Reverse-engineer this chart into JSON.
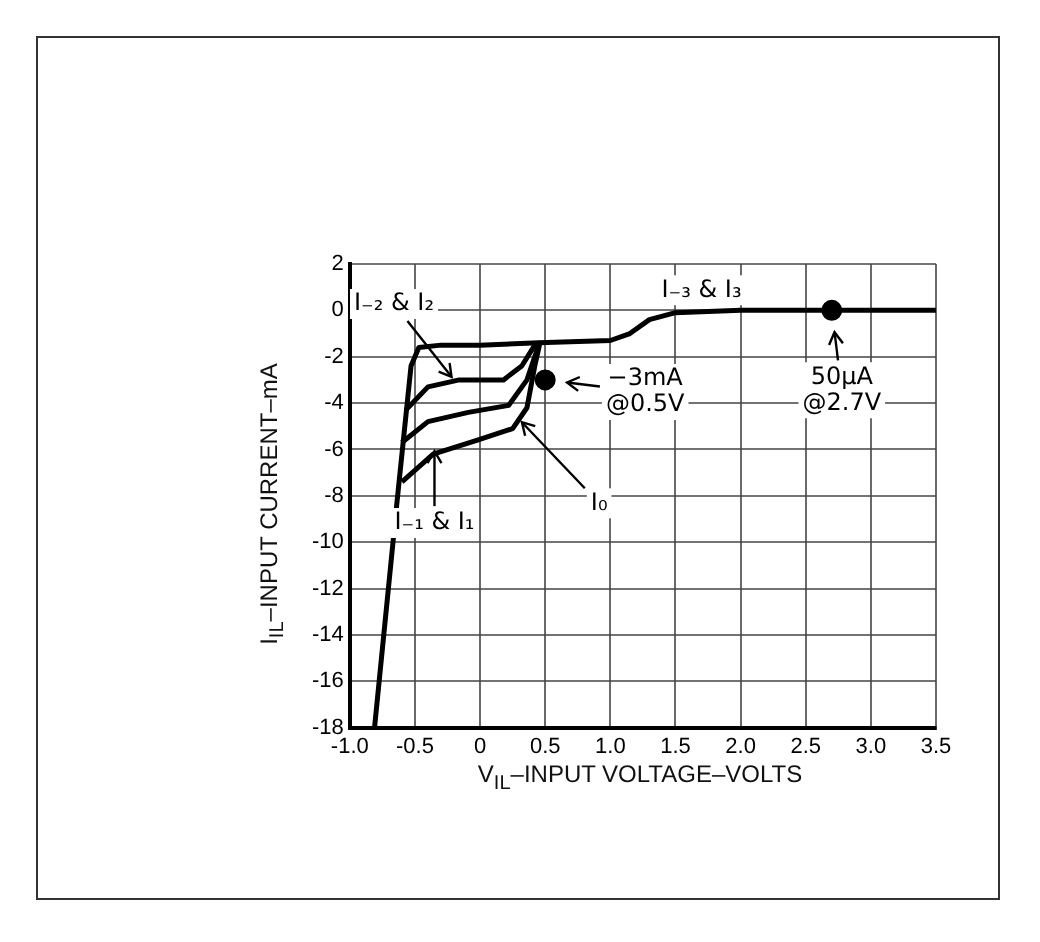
{
  "chart_data": {
    "type": "line",
    "xlabel": "V$_{IL}$–INPUT VOLTAGE–VOLTS",
    "ylabel": "I$_{IL}$–INPUT CURRENT–mA",
    "xlim": [
      -1.0,
      3.5
    ],
    "ylim": [
      -18,
      2
    ],
    "xticks": [
      {
        "value": -1,
        "label": "-1.0"
      },
      -0.5,
      0,
      0.5,
      {
        "value": 1,
        "label": "1.0"
      },
      1.5,
      {
        "value": 2,
        "label": "2.0"
      },
      2.5,
      {
        "value": 3,
        "label": "3.0"
      },
      3.5
    ],
    "yticks": [
      -18,
      -16,
      -14,
      -12,
      -10,
      -8,
      -6,
      -4,
      -2,
      0,
      2
    ],
    "grid": true,
    "legend": false,
    "marker": "none",
    "line_style": "solid",
    "series": [
      {
        "color": "#000000",
        "x": [
          -0.81,
          -0.64,
          -0.53,
          -0.47,
          -0.3,
          0,
          0.45,
          1.0,
          1.15,
          1.3,
          1.5,
          2.0,
          3.5
        ],
        "values": [
          -18,
          -8.4,
          -2.4,
          -1.6,
          -1.5,
          -1.5,
          -1.4,
          -1.3,
          -1.0,
          -0.4,
          -0.1,
          0,
          0
        ]
      },
      {
        "color": "#000000",
        "x": [
          -0.57,
          -0.4,
          -0.16,
          0.18,
          0.32,
          0.42,
          0.46
        ],
        "values": [
          -4.3,
          -3.3,
          -3.0,
          -3.0,
          -2.4,
          -1.5,
          -1.4
        ]
      },
      {
        "color": "#000000",
        "x": [
          -0.6,
          -0.4,
          -0.09,
          0.22,
          0.36,
          0.45
        ],
        "values": [
          -5.7,
          -4.8,
          -4.4,
          -4.1,
          -3.0,
          -1.5
        ]
      },
      {
        "color": "#000000",
        "x": [
          -0.6,
          -0.36,
          -0.02,
          0.25,
          0.36,
          0.42,
          0.46
        ],
        "values": [
          -7.4,
          -6.2,
          -5.6,
          -5.1,
          -4.2,
          -2.4,
          -1.4
        ]
      },
      {
        "type": "scatter",
        "marker": "circle",
        "color": "#000000",
        "x": [
          0.5,
          2.7
        ],
        "values": [
          -3,
          0
        ]
      }
    ],
    "annotations": [
      {
        "text": "I₋₂ & I₂",
        "x": -0.2,
        "y": -3.0
      },
      {
        "text": "I₋₁ & I₁",
        "x": -0.35,
        "y": -5.9
      },
      {
        "text": "I₀",
        "x": 0.3,
        "y": -4.7
      },
      {
        "text": "I₋₃ & I₃",
        "x": 1.7,
        "y": 0
      },
      {
        "text": "−3mA\n@0.5V",
        "x": 0.5,
        "y": -3
      },
      {
        "text": "50µA\n@2.7V",
        "x": 2.7,
        "y": 0
      }
    ]
  }
}
